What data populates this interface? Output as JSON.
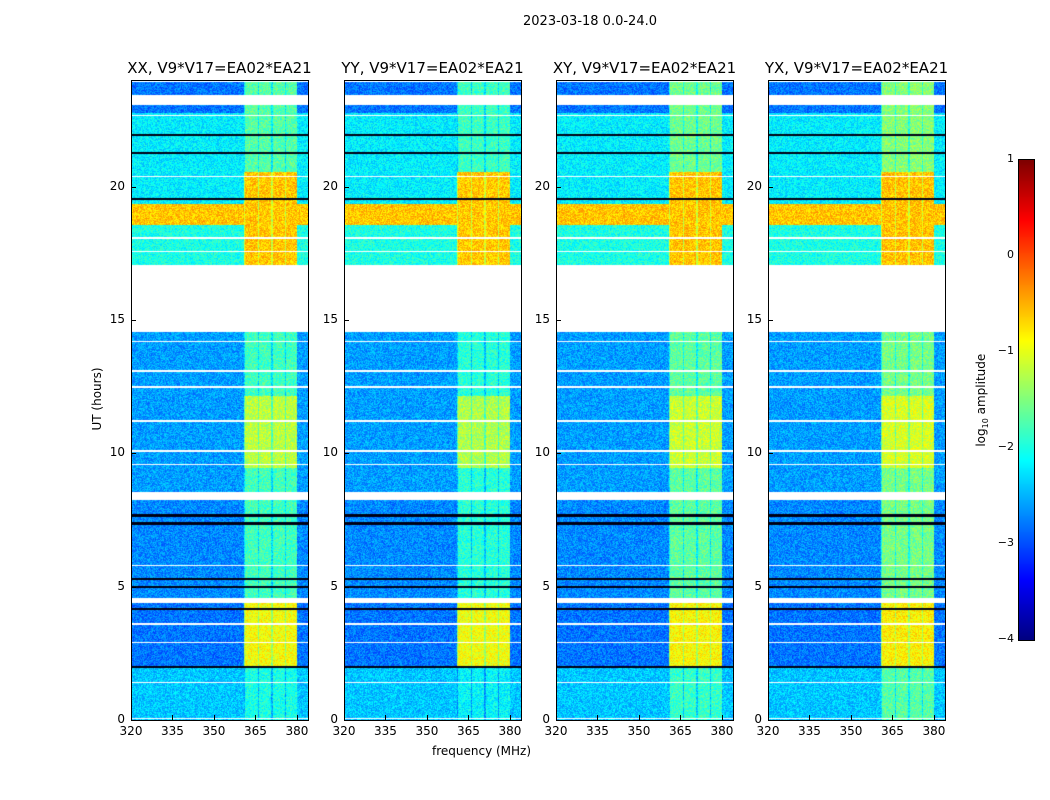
{
  "chart_data": {
    "type": "heatmap",
    "suptitle": "2023-03-18 0.0-24.0",
    "panels": [
      {
        "title": "XX, V9*V17=EA02*EA21",
        "band_boost": 1.0
      },
      {
        "title": "YY, V9*V17=EA02*EA21",
        "band_boost": 1.1
      },
      {
        "title": "XY, V9*V17=EA02*EA21",
        "band_boost": 0.9
      },
      {
        "title": "YX, V9*V17=EA02*EA21",
        "band_boost": 0.8
      }
    ],
    "xlabel": "frequency (MHz)",
    "ylabel": "UT (hours)",
    "xlim": [
      320,
      384
    ],
    "ylim": [
      0,
      24
    ],
    "xticks": [
      "320",
      "335",
      "350",
      "365",
      "380"
    ],
    "xtick_values": [
      320,
      335,
      350,
      365,
      380
    ],
    "yticks": [
      "0",
      "5",
      "10",
      "15",
      "20"
    ],
    "ytick_values": [
      0,
      5,
      10,
      15,
      20
    ],
    "colorbar": {
      "label": "log10 amplitude",
      "label_main": "log",
      "label_sub": "10",
      "label_rest": " amplitude",
      "range": [
        -4,
        1
      ],
      "ticks": [
        "1",
        "0",
        "−1",
        "−2",
        "−3",
        "−4"
      ],
      "tick_values": [
        1,
        0,
        -1,
        -2,
        -3,
        -4
      ],
      "colormap": "jet"
    },
    "background_log_amplitude": [
      {
        "t0": 0,
        "t1": 2.0,
        "value": -2.4
      },
      {
        "t0": 2.0,
        "t1": 4.4,
        "value": -2.8
      },
      {
        "t0": 4.4,
        "t1": 8.5,
        "value": -2.7
      },
      {
        "t0": 8.5,
        "t1": 14.6,
        "value": -2.6
      },
      {
        "t0": 17.1,
        "t1": 18.6,
        "value": -2.0
      },
      {
        "t0": 18.6,
        "t1": 19.4,
        "value": -0.6
      },
      {
        "t0": 19.4,
        "t1": 22.8,
        "value": -2.2
      },
      {
        "t0": 22.8,
        "t1": 24,
        "value": -2.8
      }
    ],
    "rfi_band_mhz": [
      360.5,
      380
    ],
    "rfi_log_amplitude": [
      {
        "t0": 0,
        "t1": 2.0,
        "value": -2.0
      },
      {
        "t0": 2.0,
        "t1": 4.4,
        "value": -0.9
      },
      {
        "t0": 4.4,
        "t1": 9.5,
        "value": -1.8
      },
      {
        "t0": 9.5,
        "t1": 12.2,
        "value": -1.2
      },
      {
        "t0": 12.2,
        "t1": 14.6,
        "value": -1.8
      },
      {
        "t0": 17.1,
        "t1": 20.6,
        "value": -0.6
      },
      {
        "t0": 20.6,
        "t1": 24,
        "value": -1.7
      }
    ],
    "flagged_hours": [
      [
        14.6,
        17.1
      ],
      [
        23.1,
        23.5
      ],
      [
        8.3,
        8.6
      ],
      [
        4.4,
        4.6
      ],
      [
        22.7,
        22.75
      ],
      [
        20.4,
        20.45
      ],
      [
        18.1,
        18.15
      ],
      [
        17.6,
        17.65
      ],
      [
        14.2,
        14.25
      ],
      [
        13.1,
        13.15
      ],
      [
        12.5,
        12.55
      ],
      [
        11.2,
        11.3
      ],
      [
        10.1,
        10.15
      ],
      [
        9.6,
        9.65
      ],
      [
        5.8,
        5.85
      ],
      [
        3.6,
        3.65
      ],
      [
        2.9,
        2.95
      ],
      [
        1.4,
        1.45
      ],
      [
        0.05,
        0.1
      ]
    ],
    "dropout_hours": [
      22.0,
      21.3,
      19.6,
      7.7,
      7.4,
      5.3,
      5.0,
      4.2,
      2.0
    ]
  }
}
